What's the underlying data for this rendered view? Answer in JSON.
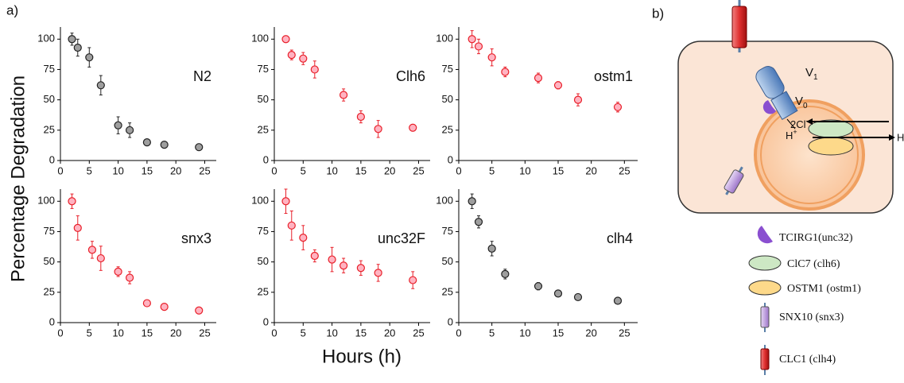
{
  "panel_labels": [
    "a)",
    "b)"
  ],
  "y_label": "Percentage Degradation",
  "x_label": "Hours (h)",
  "chart_data": [
    {
      "type": "scatter",
      "title": "N2",
      "color": "#9e9e9e",
      "edgecolor": "#222222",
      "x": [
        2,
        3,
        5,
        7,
        10,
        12,
        15,
        18,
        24
      ],
      "values": [
        100,
        93,
        85,
        62,
        29,
        25,
        15,
        13,
        11
      ],
      "errors": [
        5,
        7,
        8,
        8,
        7,
        6,
        2,
        2,
        2
      ],
      "xlim": [
        0,
        27
      ],
      "ylim": [
        0,
        110
      ],
      "xticks": [
        0,
        5,
        10,
        15,
        20,
        25
      ],
      "yticks": [
        0,
        25,
        50,
        75,
        100
      ]
    },
    {
      "type": "scatter",
      "title": "Clh6",
      "color": "#ffb3c1",
      "edgecolor": "#e8202a",
      "x": [
        2,
        3,
        5,
        7,
        12,
        15,
        18,
        24
      ],
      "values": [
        100,
        87,
        84,
        75,
        54,
        36,
        26,
        27
      ],
      "errors": [
        2,
        4,
        5,
        7,
        5,
        5,
        7,
        2
      ],
      "xlim": [
        0,
        27
      ],
      "ylim": [
        0,
        110
      ],
      "xticks": [
        0,
        5,
        10,
        15,
        20,
        25
      ],
      "yticks": [
        0,
        25,
        50,
        75,
        100
      ]
    },
    {
      "type": "scatter",
      "title": "ostm1",
      "color": "#ffb3c1",
      "edgecolor": "#e8202a",
      "x": [
        2,
        3,
        5,
        7,
        12,
        15,
        18,
        24
      ],
      "values": [
        100,
        94,
        85,
        73,
        68,
        62,
        50,
        44
      ],
      "errors": [
        7,
        6,
        7,
        4,
        4,
        3,
        5,
        4
      ],
      "xlim": [
        0,
        27
      ],
      "ylim": [
        0,
        110
      ],
      "xticks": [
        0,
        5,
        10,
        15,
        20,
        25
      ],
      "yticks": [
        0,
        25,
        50,
        75,
        100
      ]
    },
    {
      "type": "scatter",
      "title": "snx3",
      "color": "#ffb3c1",
      "edgecolor": "#e8202a",
      "x": [
        2,
        3,
        5.5,
        7,
        10,
        12,
        15,
        18,
        24
      ],
      "values": [
        100,
        78,
        60,
        53,
        42,
        37,
        16,
        13,
        10
      ],
      "errors": [
        6,
        10,
        7,
        10,
        4,
        5,
        2,
        2,
        2
      ],
      "xlim": [
        0,
        27
      ],
      "ylim": [
        0,
        110
      ],
      "xticks": [
        0,
        5,
        10,
        15,
        20,
        25
      ],
      "yticks": [
        0,
        25,
        50,
        75,
        100
      ]
    },
    {
      "type": "scatter",
      "title": "unc32F",
      "color": "#ffb3c1",
      "edgecolor": "#e8202a",
      "x": [
        2,
        3,
        5,
        7,
        10,
        12,
        15,
        18,
        24
      ],
      "values": [
        100,
        80,
        70,
        55,
        52,
        47,
        45,
        41,
        35
      ],
      "errors": [
        10,
        12,
        10,
        5,
        10,
        6,
        6,
        7,
        7
      ],
      "xlim": [
        0,
        27
      ],
      "ylim": [
        0,
        110
      ],
      "xticks": [
        0,
        5,
        10,
        15,
        20,
        25
      ],
      "yticks": [
        0,
        25,
        50,
        75,
        100
      ]
    },
    {
      "type": "scatter",
      "title": "clh4",
      "color": "#9e9e9e",
      "edgecolor": "#222222",
      "x": [
        2,
        3,
        5,
        7,
        12,
        15,
        18,
        24
      ],
      "values": [
        100,
        83,
        61,
        40,
        30,
        24,
        21,
        18
      ],
      "errors": [
        6,
        5,
        6,
        4,
        3,
        2,
        2,
        2
      ],
      "xlim": [
        0,
        27
      ],
      "ylim": [
        0,
        110
      ],
      "xticks": [
        0,
        5,
        10,
        15,
        20,
        25
      ],
      "yticks": [
        0,
        25,
        50,
        75,
        100
      ]
    }
  ],
  "diagram": {
    "v1": {
      "base": "V",
      "sub": "1"
    },
    "v0": {
      "base": "V",
      "sub": "0"
    },
    "cl": {
      "base": "2Cl",
      "sup": "-"
    },
    "h_in": {
      "base": "H",
      "sup": "+"
    },
    "h_out": "H",
    "legend": [
      "TCIRG1(unc32)",
      "ClC7 (clh6)",
      "OSTM1 (ostm1)",
      "SNX10 (snx3)",
      "CLC1 (clh4)"
    ]
  }
}
